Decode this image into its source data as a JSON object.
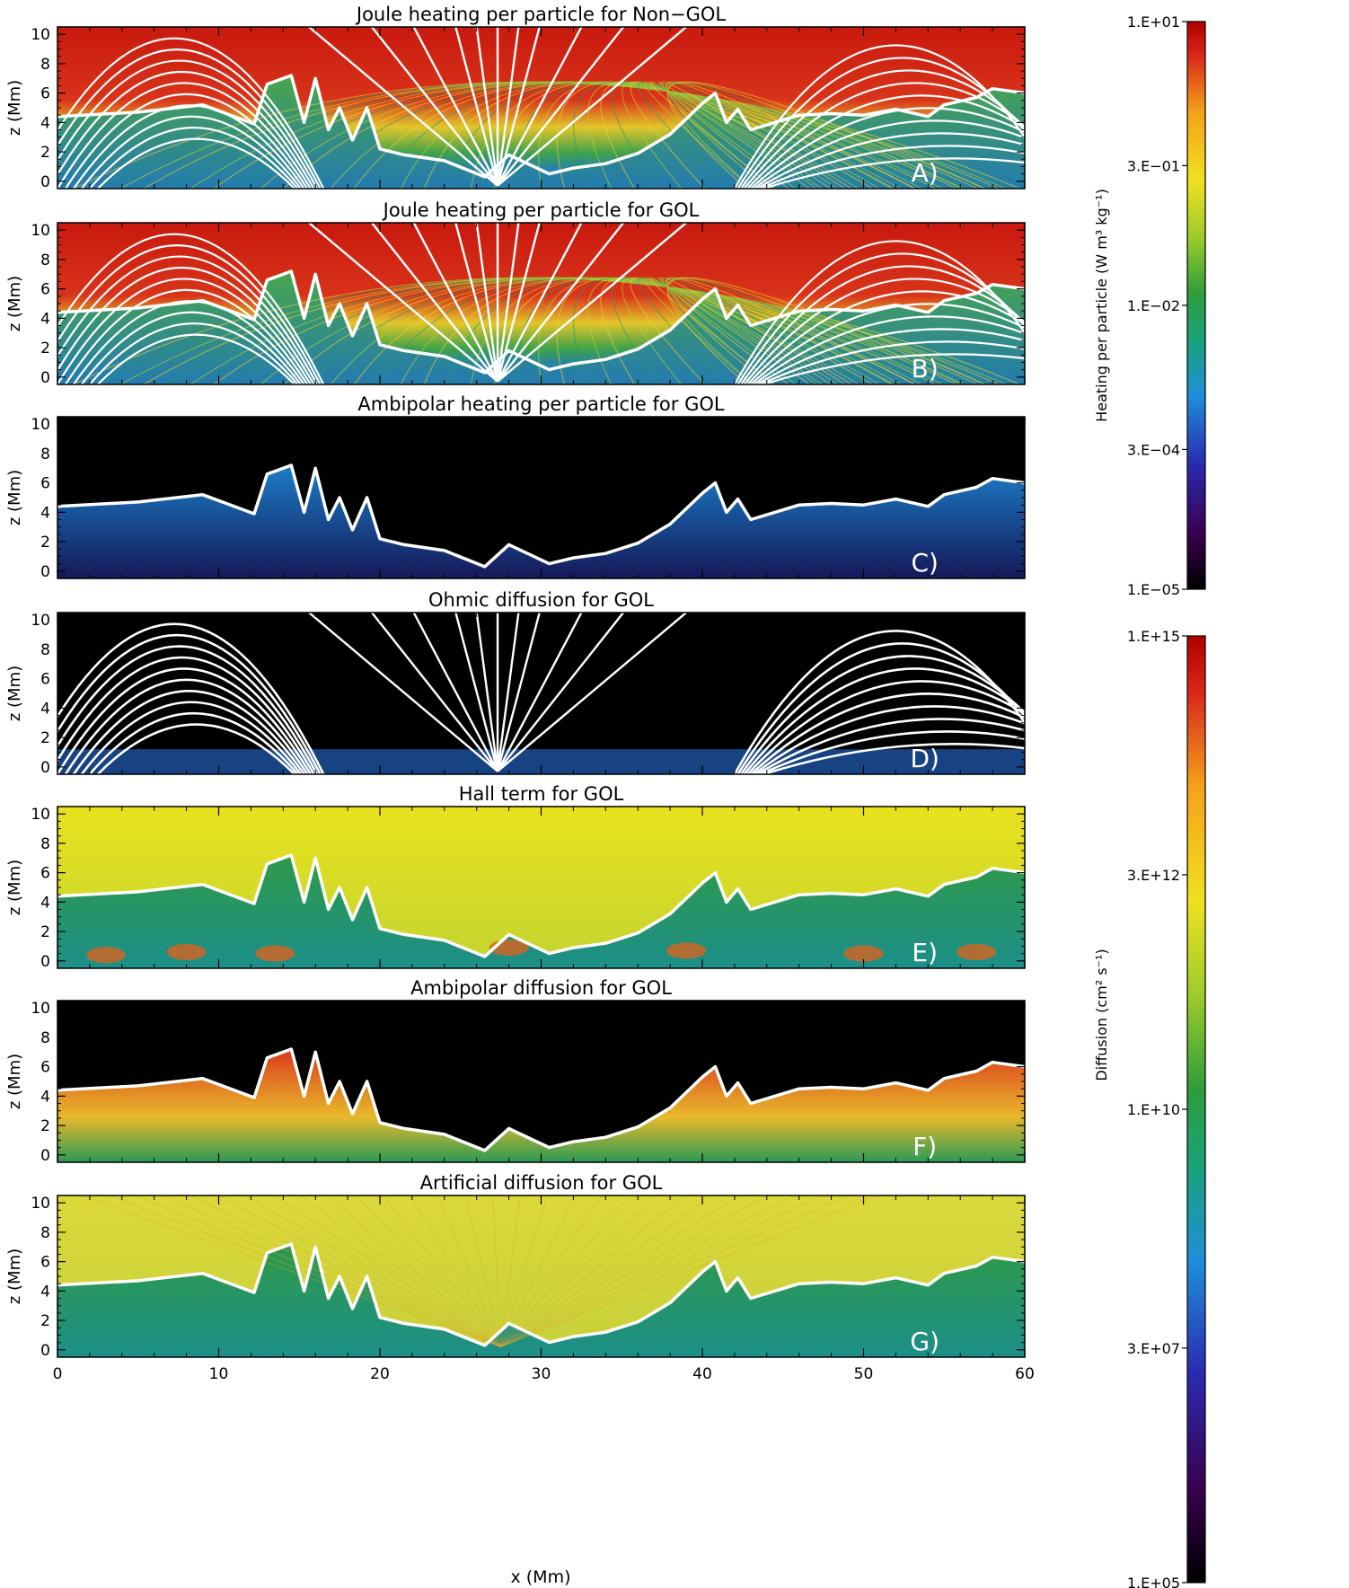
{
  "chart_data": {
    "type": "heatmap",
    "panels": [
      {
        "id": "A",
        "title": "Joule heating per particle for Non−GOL",
        "label": "A)",
        "colorbar": "heating",
        "background": "colored",
        "lines": "field",
        "overlay": "contour"
      },
      {
        "id": "B",
        "title": "Joule heating per particle for GOL",
        "label": "B)",
        "colorbar": "heating",
        "background": "colored",
        "lines": "field",
        "overlay": "contour"
      },
      {
        "id": "C",
        "title": "Ambipolar heating per particle for GOL",
        "label": "C)",
        "colorbar": "heating",
        "background": "black",
        "lines": "none",
        "overlay": "contour"
      },
      {
        "id": "D",
        "title": "Ohmic diffusion for GOL",
        "label": "D)",
        "colorbar": "diffusion",
        "background": "black",
        "lines": "field",
        "overlay": "none"
      },
      {
        "id": "E",
        "title": "Hall term for GOL",
        "label": "E)",
        "colorbar": "diffusion",
        "background": "yellow",
        "lines": "none",
        "overlay": "contour"
      },
      {
        "id": "F",
        "title": "Ambipolar diffusion for GOL",
        "label": "F)",
        "colorbar": "diffusion",
        "background": "black",
        "lines": "none",
        "overlay": "contour"
      },
      {
        "id": "G",
        "title": "Artificial diffusion for GOL",
        "label": "G)",
        "colorbar": "diffusion",
        "background": "yellowgreen",
        "lines": "none",
        "overlay": "contour"
      }
    ],
    "x_axis": {
      "label": "x (Mm)",
      "range": [
        0,
        60
      ],
      "ticks": [
        0,
        10,
        20,
        30,
        40,
        50,
        60
      ]
    },
    "y_axis": {
      "label": "z (Mm)",
      "range": [
        -0.5,
        10.5
      ],
      "ticks": [
        0,
        2,
        4,
        6,
        8,
        10
      ]
    },
    "colorbars": {
      "heating": {
        "label": "Heating per particle (W m³ kg⁻¹)",
        "scale": "log",
        "range": [
          1e-05,
          10
        ],
        "tick_labels": [
          "1.E+01",
          "3.E−01",
          "1.E−02",
          "3.E−04",
          "1.E−05"
        ],
        "tick_values": [
          10,
          0.3,
          0.01,
          0.0003,
          1e-05
        ]
      },
      "diffusion": {
        "label": "Diffusion (cm² s⁻¹)",
        "scale": "log",
        "range": [
          100000.0,
          1000000000000000.0
        ],
        "tick_labels": [
          "1.E+15",
          "3.E+12",
          "1.E+10",
          "3.E+07",
          "1.E+05"
        ],
        "tick_values": [
          1000000000000000.0,
          3000000000000.0,
          10000000000.0,
          30000000.0,
          100000.0
        ]
      }
    },
    "colormap": [
      "#000000",
      "#3a0050",
      "#2a2ab0",
      "#1e8fd8",
      "#1aa37a",
      "#2e9c3c",
      "#9ccc2a",
      "#f0e020",
      "#f5a21a",
      "#d8281a",
      "#b00000"
    ],
    "boundary_contour": [
      [
        0,
        4.4
      ],
      [
        5,
        4.7
      ],
      [
        9,
        5.2
      ],
      [
        12.2,
        3.9
      ],
      [
        13,
        6.6
      ],
      [
        14.5,
        7.2
      ],
      [
        15.3,
        4.0
      ],
      [
        16,
        7.0
      ],
      [
        16.8,
        3.5
      ],
      [
        17.5,
        5.0
      ],
      [
        18.3,
        2.8
      ],
      [
        19.2,
        5.0
      ],
      [
        20,
        2.2
      ],
      [
        21.5,
        1.8
      ],
      [
        24,
        1.4
      ],
      [
        26.5,
        0.3
      ],
      [
        28,
        1.8
      ],
      [
        30.5,
        0.5
      ],
      [
        32,
        0.9
      ],
      [
        34,
        1.2
      ],
      [
        36,
        1.9
      ],
      [
        38,
        3.2
      ],
      [
        40,
        5.3
      ],
      [
        40.8,
        6.0
      ],
      [
        41.5,
        4.0
      ],
      [
        42.2,
        4.9
      ],
      [
        43,
        3.5
      ],
      [
        46,
        4.5
      ],
      [
        48,
        4.6
      ],
      [
        50,
        4.5
      ],
      [
        52,
        4.9
      ],
      [
        54,
        4.4
      ],
      [
        55,
        5.2
      ],
      [
        57,
        5.7
      ],
      [
        58,
        6.3
      ],
      [
        60,
        6.0
      ]
    ]
  }
}
